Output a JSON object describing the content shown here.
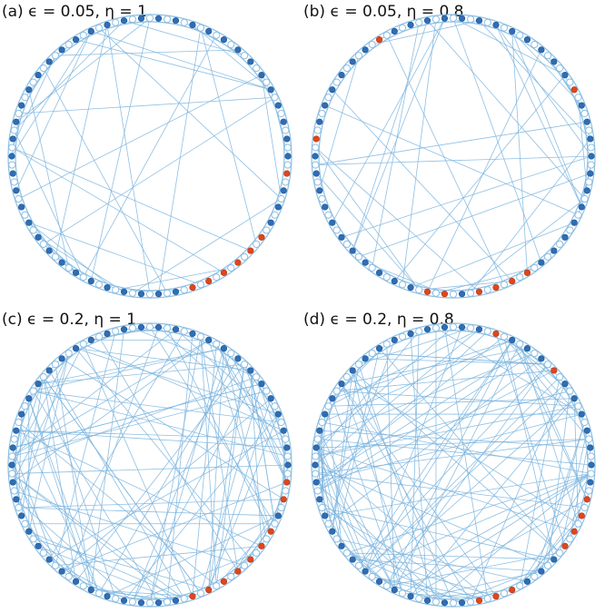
{
  "panels": [
    {
      "label": "(a) ϵ = 0.05, η = 1"
    },
    {
      "label": "(b) ϵ = 0.05, η = 0.8"
    },
    {
      "label": "(c) ϵ = 0.2, η = 1"
    },
    {
      "label": "(d) ϵ = 0.2, η = 0.8"
    }
  ]
}
